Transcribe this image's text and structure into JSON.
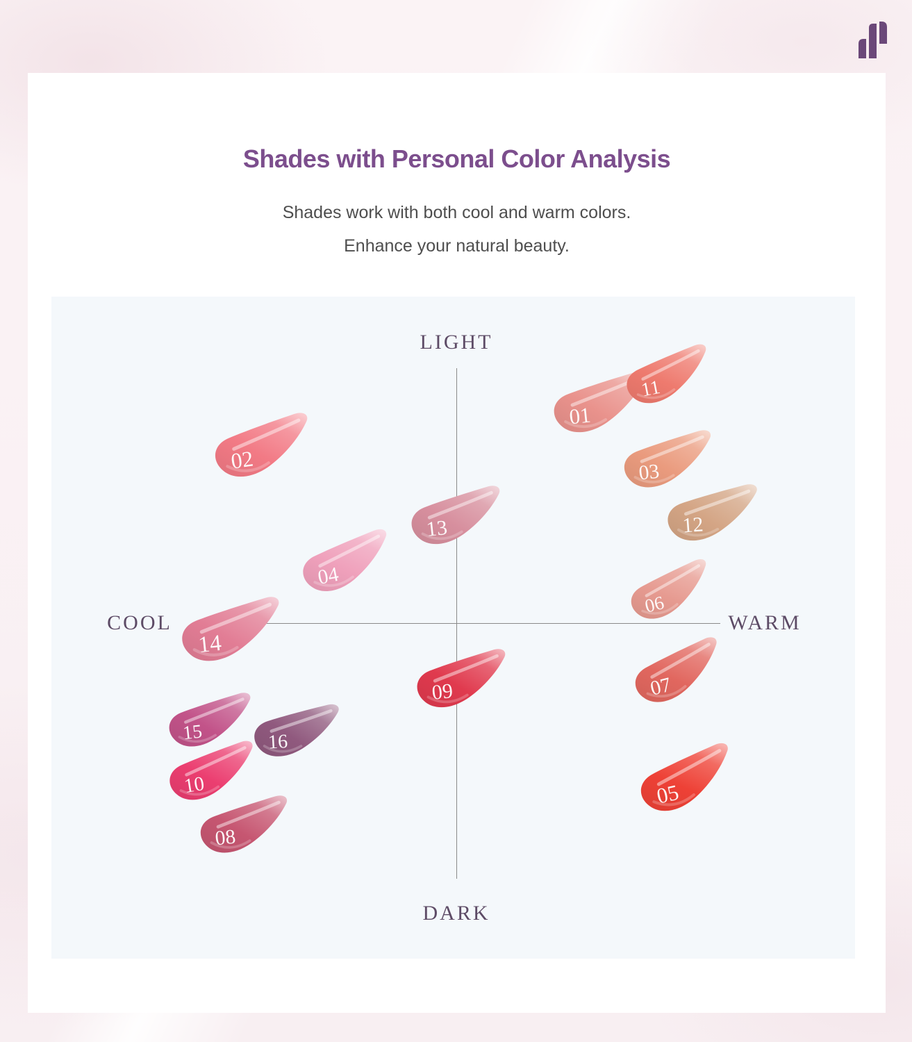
{
  "header": {
    "title": "Shades with Personal Color Analysis",
    "subtitle_line1": "Shades work with both cool and warm colors.",
    "subtitle_line2": "Enhance your natural beauty."
  },
  "colors": {
    "title": "#7c4e8d",
    "subtitle": "#4e4e4e",
    "card_bg": "#ffffff",
    "panel_bg": "#f4f8fb",
    "axis_line": "#8a8a8a",
    "axis_label": "#5d4b66",
    "logo": "#6b4879",
    "page_bg": "#f9f0f3"
  },
  "chart_data": {
    "type": "scatter",
    "title": "Shades with Personal Color Analysis",
    "axis_labels": {
      "top": "LIGHT",
      "bottom": "DARK",
      "left": "COOL",
      "right": "WARM"
    },
    "x_axis": {
      "meaning": "COOL (-1) to WARM (+1)",
      "range": [
        -1,
        1
      ]
    },
    "y_axis": {
      "meaning": "DARK (-1) to LIGHT (+1)",
      "range": [
        -1,
        1
      ]
    },
    "grid": false,
    "legend": false,
    "points": [
      {
        "label": "01",
        "color": "#e9928c",
        "cool_warm": 0.55,
        "light_dark": 0.84
      },
      {
        "label": "11",
        "color": "#ee7a6e",
        "cool_warm": 0.81,
        "light_dark": 0.95
      },
      {
        "label": "02",
        "color": "#f27a85",
        "cool_warm": -0.74,
        "light_dark": 0.67
      },
      {
        "label": "03",
        "color": "#ea9b7e",
        "cool_warm": 0.81,
        "light_dark": 0.62
      },
      {
        "label": "12",
        "color": "#d4a585",
        "cool_warm": 0.98,
        "light_dark": 0.41
      },
      {
        "label": "13",
        "color": "#d78f9e",
        "cool_warm": 0.0,
        "light_dark": 0.4
      },
      {
        "label": "04",
        "color": "#efa0bb",
        "cool_warm": -0.42,
        "light_dark": 0.22
      },
      {
        "label": "06",
        "color": "#e69a90",
        "cool_warm": 0.82,
        "light_dark": 0.11
      },
      {
        "label": "14",
        "color": "#e27d95",
        "cool_warm": -0.86,
        "light_dark": -0.05
      },
      {
        "label": "09",
        "color": "#e03a4e",
        "cool_warm": 0.02,
        "light_dark": -0.24
      },
      {
        "label": "07",
        "color": "#e1675f",
        "cool_warm": 0.85,
        "light_dark": -0.21
      },
      {
        "label": "15",
        "color": "#c25389",
        "cool_warm": -0.94,
        "light_dark": -0.4
      },
      {
        "label": "16",
        "color": "#90597e",
        "cool_warm": -0.61,
        "light_dark": -0.44
      },
      {
        "label": "10",
        "color": "#eb3e70",
        "cool_warm": -0.93,
        "light_dark": -0.6
      },
      {
        "label": "05",
        "color": "#ee4136",
        "cool_warm": 0.88,
        "light_dark": -0.63
      },
      {
        "label": "08",
        "color": "#c65671",
        "cool_warm": -0.81,
        "light_dark": -0.81
      }
    ]
  }
}
